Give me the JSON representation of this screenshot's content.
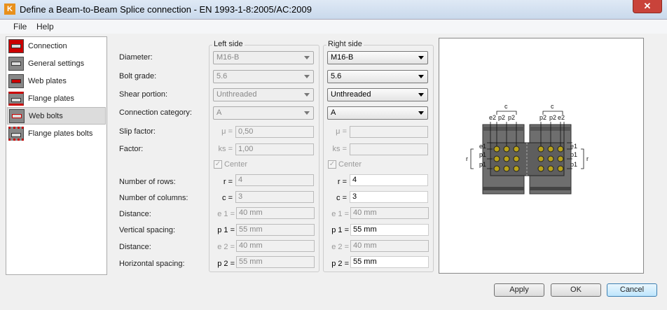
{
  "window": {
    "title": "Define a Beam-to-Beam Splice connection - EN 1993-1-8:2005/AC:2009",
    "close": "✕",
    "app_icon": "K"
  },
  "menu": [
    "File",
    "Help"
  ],
  "nav": [
    {
      "label": "Connection",
      "icon": "connection-icon"
    },
    {
      "label": "General settings",
      "icon": "general-settings-icon"
    },
    {
      "label": "Web plates",
      "icon": "web-plates-icon"
    },
    {
      "label": "Flange plates",
      "icon": "flange-plates-icon"
    },
    {
      "label": "Web bolts",
      "icon": "web-bolts-icon",
      "selected": true
    },
    {
      "label": "Flange plates bolts",
      "icon": "flange-plates-bolts-icon"
    }
  ],
  "labels": {
    "diameter": "Diameter:",
    "bolt_grade": "Bolt grade:",
    "shear_portion": "Shear portion:",
    "connection_category": "Connection category:",
    "slip_factor": "Slip factor:",
    "factor": "Factor:",
    "rows": "Number of rows:",
    "columns": "Number of columns:",
    "distance1": "Distance:",
    "vspacing": "Vertical spacing:",
    "distance2": "Distance:",
    "hspacing": "Horizontal spacing:"
  },
  "symbols": {
    "mu": "μ =",
    "ks": "ks =",
    "r": "r =",
    "c": "c =",
    "e1": "e 1 =",
    "p1": "p 1 =",
    "e2": "e 2 =",
    "p2": "p 2 ="
  },
  "left": {
    "title": "Left side",
    "diameter": "M16-B",
    "bolt_grade": "5.6",
    "shear_portion": "Unthreaded",
    "connection_category": "A",
    "slip_factor": "0,50",
    "factor": "1,00",
    "center": "Center",
    "center_checked": true,
    "rows": "4",
    "columns": "3",
    "e1": "40 mm",
    "p1": "55 mm",
    "e2": "40 mm",
    "p2": "55 mm"
  },
  "right": {
    "title": "Right side",
    "diameter": "M16-B",
    "bolt_grade": "5.6",
    "shear_portion": "Unthreaded",
    "connection_category": "A",
    "slip_factor": "",
    "factor": "",
    "center": "Center",
    "center_checked": true,
    "rows": "4",
    "columns": "3",
    "e1": "40 mm",
    "p1": "55 mm",
    "e2": "40 mm",
    "p2": "55 mm"
  },
  "diagram": {
    "c": "c",
    "e2": "e2",
    "p2": "p2",
    "e1": "e1",
    "p1": "p1",
    "r": "r"
  },
  "buttons": {
    "apply": "Apply",
    "ok": "OK",
    "cancel": "Cancel"
  },
  "colors": {
    "accent": "#3c7fb1",
    "bolt": "#b8a21a",
    "steel": "#6e6e6e",
    "icon_red": "#cc0000"
  }
}
